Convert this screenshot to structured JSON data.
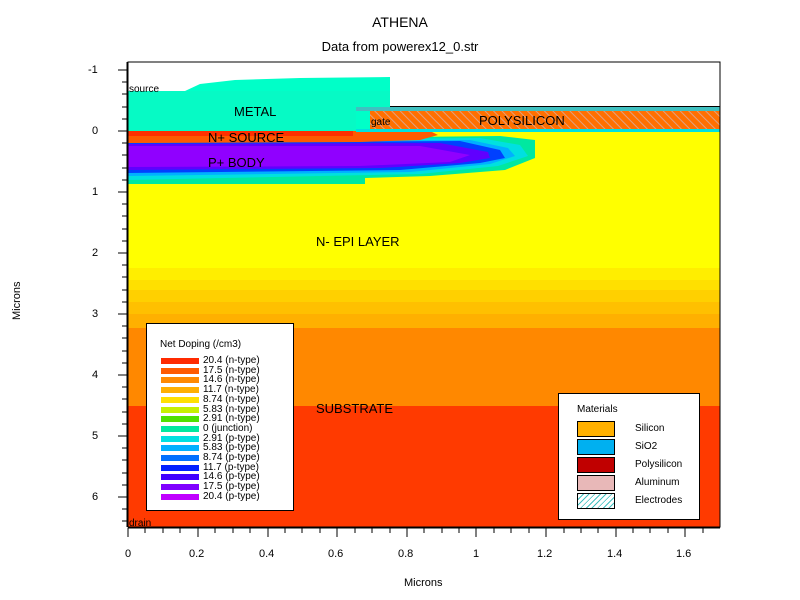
{
  "header": {
    "title": "ATHENA",
    "subtitle": "Data from powerex12_0.str"
  },
  "axes": {
    "x_title": "Microns",
    "y_title": "Microns",
    "x_ticks": [
      "0",
      "0.2",
      "0.4",
      "0.6",
      "0.8",
      "1",
      "1.2",
      "1.4",
      "1.6"
    ],
    "y_ticks": [
      "-1",
      "0",
      "1",
      "2",
      "3",
      "4",
      "5",
      "6"
    ]
  },
  "regions": {
    "metal": "METAL",
    "n_source": "N+ SOURCE",
    "p_body": "P+ BODY",
    "polysilicon": "POLYSILICON",
    "epi": "N- EPI LAYER",
    "substrate": "SUBSTRATE",
    "source_electrode": "source",
    "gate_electrode": "gate",
    "drain_electrode": "drain"
  },
  "doping_legend": {
    "title": "Net Doping (/cm3)",
    "entries": [
      {
        "label": "20.4 (n-type)",
        "color": "#ff2a00"
      },
      {
        "label": "17.5 (n-type)",
        "color": "#ff5a00"
      },
      {
        "label": "14.6 (n-type)",
        "color": "#ff8a00"
      },
      {
        "label": "11.7 (n-type)",
        "color": "#ffb000"
      },
      {
        "label": "8.74 (n-type)",
        "color": "#ffe000"
      },
      {
        "label": "5.83 (n-type)",
        "color": "#c8f000"
      },
      {
        "label": "2.91 (n-type)",
        "color": "#50e000"
      },
      {
        "label": "0 (junction)",
        "color": "#00e8a0"
      },
      {
        "label": "2.91 (p-type)",
        "color": "#00e0e0"
      },
      {
        "label": "5.83 (p-type)",
        "color": "#00b0ff"
      },
      {
        "label": "8.74 (p-type)",
        "color": "#0070ff"
      },
      {
        "label": "11.7 (p-type)",
        "color": "#0020ff"
      },
      {
        "label": "14.6 (p-type)",
        "color": "#4000ff"
      },
      {
        "label": "17.5 (p-type)",
        "color": "#8000ff"
      },
      {
        "label": "20.4 (p-type)",
        "color": "#c000ff"
      }
    ]
  },
  "materials_legend": {
    "title": "Materials",
    "entries": [
      {
        "label": "Silicon",
        "color": "#ffb000"
      },
      {
        "label": "SiO2",
        "color": "#00b0f0"
      },
      {
        "label": "Polysilicon",
        "color": "#c00000"
      },
      {
        "label": "Aluminum",
        "color": "#e8b8b8"
      },
      {
        "label": "Electrodes",
        "color": "hatch"
      }
    ]
  }
}
